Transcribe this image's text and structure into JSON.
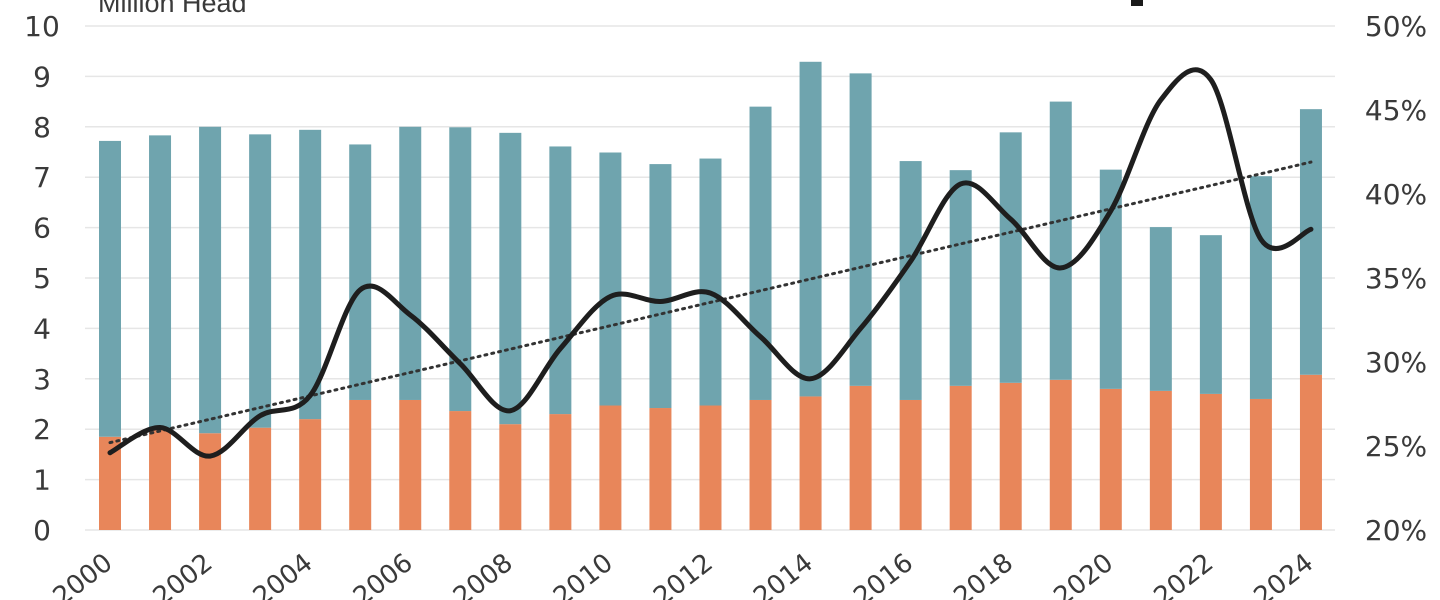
{
  "unit_label": "Million Head",
  "chart_data": {
    "type": "bar",
    "stacked": true,
    "title": "",
    "xlabel": "",
    "ylabel": "Million Head",
    "ylim": [
      0,
      10
    ],
    "y2lim": [
      20,
      50
    ],
    "grid": true,
    "categories": [
      "2000",
      "2001",
      "2002",
      "2003",
      "2004",
      "2005",
      "2006",
      "2007",
      "2008",
      "2009",
      "2010",
      "2011",
      "2012",
      "2013",
      "2014",
      "2015",
      "2016",
      "2017",
      "2018",
      "2019",
      "2020",
      "2021",
      "2022",
      "2023",
      "2024"
    ],
    "x_tick_labels": [
      "2000",
      "2002",
      "2004",
      "2006",
      "2008",
      "2010",
      "2012",
      "2014",
      "2016",
      "2018",
      "2020",
      "2022",
      "2024"
    ],
    "y_ticks": [
      "0",
      "1",
      "2",
      "3",
      "4",
      "5",
      "6",
      "7",
      "8",
      "9",
      "10"
    ],
    "y2_ticks": [
      "20%",
      "25%",
      "30%",
      "35%",
      "40%",
      "45%",
      "50%"
    ],
    "colors": {
      "bottom": "#E8865A",
      "top": "#6FA4AE",
      "line": "#1E1E1E",
      "trend": "#333333"
    },
    "series": [
      {
        "kind": "bar",
        "values": [
          1.85,
          2.0,
          1.92,
          2.03,
          2.2,
          2.58,
          2.58,
          2.36,
          2.1,
          2.3,
          2.47,
          2.42,
          2.47,
          2.58,
          2.65,
          2.86,
          2.58,
          2.86,
          2.92,
          2.98,
          2.8,
          2.76,
          2.7,
          2.6,
          3.08
        ]
      },
      {
        "kind": "bar",
        "values": [
          5.87,
          5.83,
          6.08,
          5.82,
          5.74,
          5.07,
          5.42,
          5.63,
          5.78,
          5.31,
          5.02,
          4.84,
          4.9,
          5.82,
          6.64,
          6.2,
          4.74,
          4.28,
          4.97,
          5.52,
          4.35,
          3.25,
          3.15,
          4.42,
          5.27
        ]
      },
      {
        "kind": "line",
        "axis": "right",
        "values": [
          24.6,
          26.1,
          24.4,
          26.8,
          28.0,
          34.3,
          32.8,
          29.9,
          27.1,
          30.8,
          33.9,
          33.6,
          34.1,
          31.5,
          29.0,
          32.0,
          36.0,
          40.6,
          38.5,
          35.6,
          39.0,
          45.6,
          46.8,
          37.3,
          37.9
        ]
      },
      {
        "kind": "trendline",
        "axis": "right",
        "style": "dotted",
        "start": 25.2,
        "end": 41.9
      }
    ]
  }
}
